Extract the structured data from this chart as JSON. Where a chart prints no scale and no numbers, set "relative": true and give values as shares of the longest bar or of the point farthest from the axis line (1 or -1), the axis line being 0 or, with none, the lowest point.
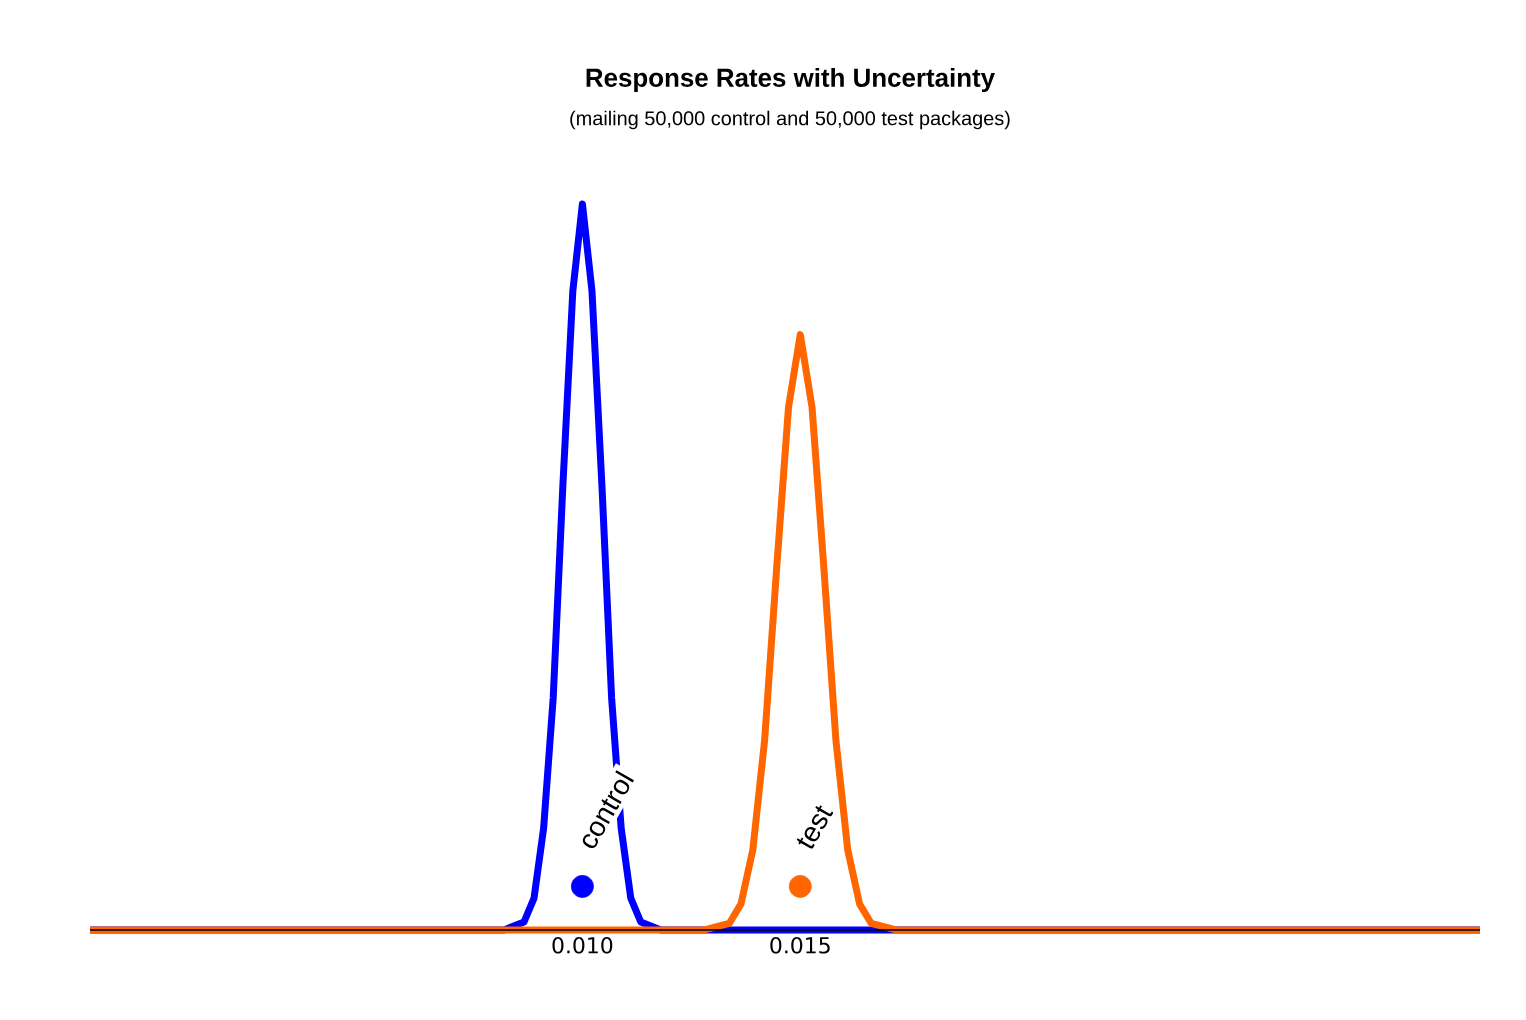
{
  "chart_data": {
    "type": "line",
    "title": "Response Rates with Uncertainty",
    "subtitle": "(mailing 50,000 control and 50,000 test packages)",
    "relative": true,
    "xlim": [
      -0.0013,
      0.0306
    ],
    "xticks": [
      {
        "value": 0.01,
        "label": "0.010"
      },
      {
        "value": 0.015,
        "label": "0.015"
      }
    ],
    "grid": false,
    "series": [
      {
        "name": "control",
        "color": "#0000ff",
        "x": [
          -0.0013,
          0.0082,
          0.00866,
          0.00889,
          0.00911,
          0.00933,
          0.00955,
          0.00978,
          0.01,
          0.01022,
          0.01045,
          0.01067,
          0.01089,
          0.01111,
          0.01134,
          0.0118,
          0.0306
        ],
        "values": [
          0,
          0,
          0.011,
          0.044,
          0.14,
          0.32,
          0.61,
          0.88,
          1,
          0.88,
          0.61,
          0.32,
          0.14,
          0.044,
          0.011,
          0,
          0
        ]
      },
      {
        "name": "test",
        "color": "#ff6600",
        "x": [
          -0.0013,
          0.0128,
          0.01337,
          0.01364,
          0.01391,
          0.01418,
          0.01446,
          0.01473,
          0.015,
          0.01527,
          0.01554,
          0.01582,
          0.01609,
          0.01636,
          0.01663,
          0.0172,
          0.0306
        ],
        "values": [
          0,
          0,
          0.009,
          0.036,
          0.11,
          0.26,
          0.5,
          0.72,
          0.82,
          0.72,
          0.5,
          0.26,
          0.11,
          0.036,
          0.009,
          0,
          0
        ]
      },
      {
        "type": "scatter",
        "marker": "circle",
        "color": "#0000ff",
        "x": [
          0.01
        ],
        "values": [
          0.06
        ]
      },
      {
        "type": "scatter",
        "marker": "circle",
        "color": "#ff6600",
        "x": [
          0.015
        ],
        "values": [
          0.06
        ]
      }
    ]
  }
}
